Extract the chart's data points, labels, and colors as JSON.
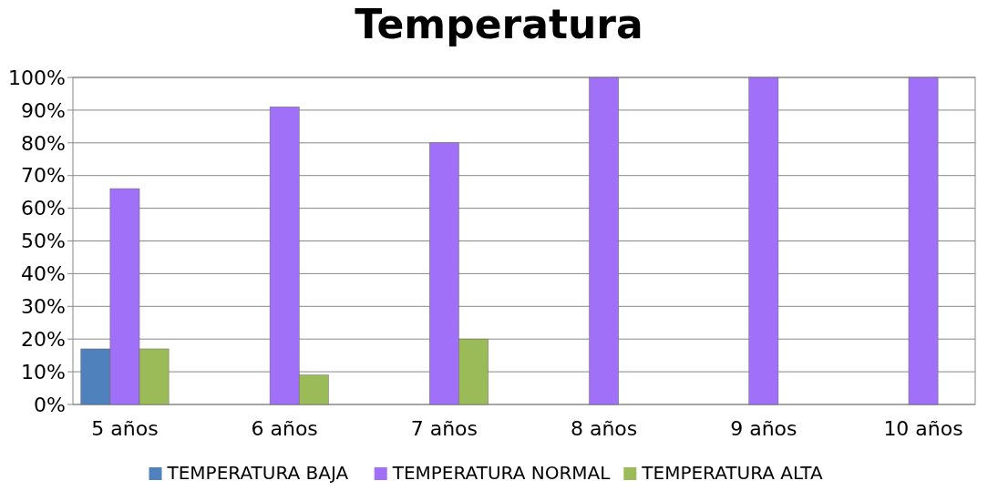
{
  "chart_data": {
    "type": "bar",
    "title": "Temperatura",
    "categories": [
      "5 años",
      "6 años",
      "7 años",
      "8 años",
      "9 años",
      "10 años"
    ],
    "series": [
      {
        "name": "TEMPERATURA BAJA",
        "color": "#4f81bd",
        "values": [
          17,
          null,
          null,
          null,
          null,
          null
        ]
      },
      {
        "name": "TEMPERATURA NORMAL",
        "color": "#a070f8",
        "values": [
          66,
          91,
          80,
          100,
          100,
          100
        ]
      },
      {
        "name": "TEMPERATURA ALTA",
        "color": "#9bbb59",
        "values": [
          17,
          9,
          20,
          null,
          null,
          null
        ]
      }
    ],
    "ylim": [
      0,
      100
    ],
    "yticks": [
      {
        "value": 0,
        "label": "0%"
      },
      {
        "value": 10,
        "label": "10%"
      },
      {
        "value": 20,
        "label": "20%"
      },
      {
        "value": 30,
        "label": "30%"
      },
      {
        "value": 40,
        "label": "40%"
      },
      {
        "value": 50,
        "label": "50%"
      },
      {
        "value": 60,
        "label": "60%"
      },
      {
        "value": 70,
        "label": "70%"
      },
      {
        "value": 80,
        "label": "80%"
      },
      {
        "value": 90,
        "label": "90%"
      },
      {
        "value": 100,
        "label": "100%"
      }
    ],
    "grid": "y",
    "legend": "bottom"
  }
}
